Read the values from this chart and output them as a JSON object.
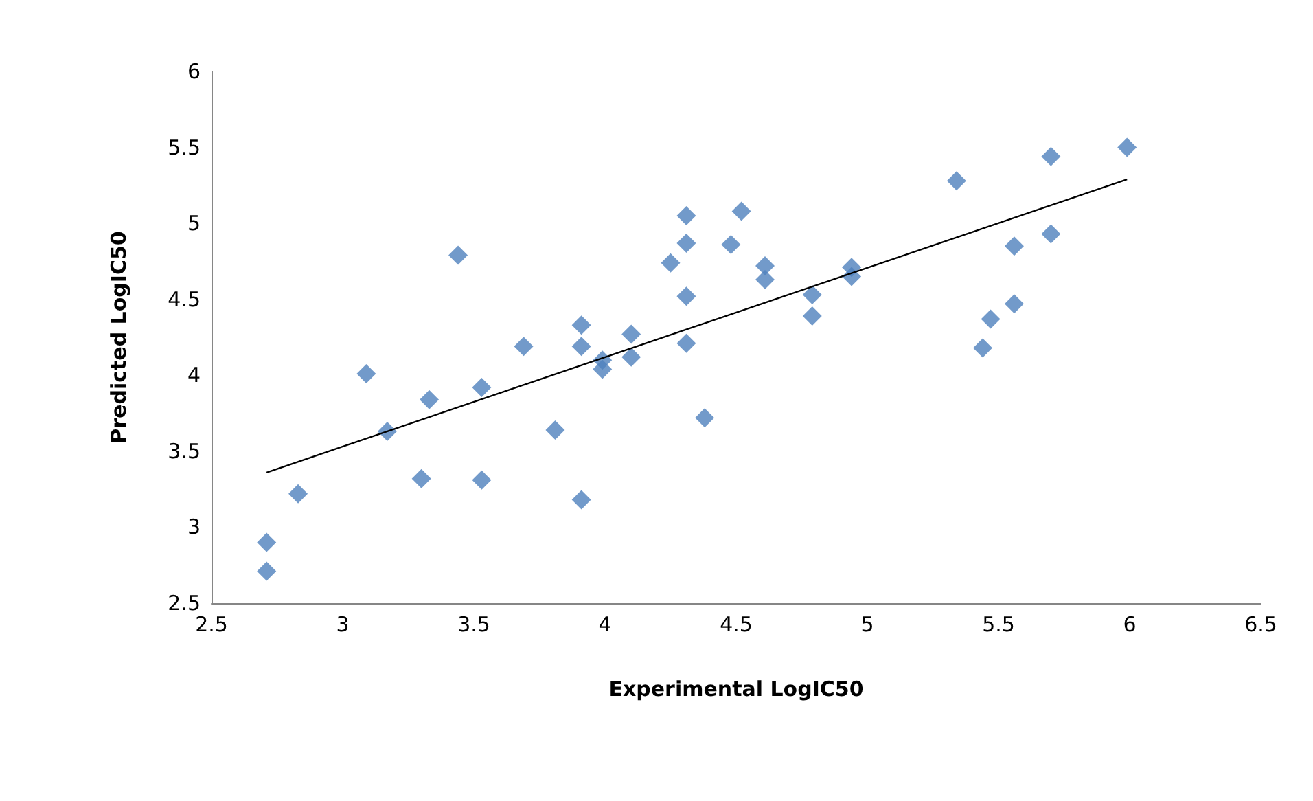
{
  "chart_data": {
    "type": "scatter",
    "xlabel": "Experimental LogIC50",
    "ylabel": "Predicted LogIC50",
    "xlim": [
      2.5,
      6.5
    ],
    "xticks": [
      2.5,
      3,
      3.5,
      4,
      4.5,
      5,
      5.5,
      6,
      6.5
    ],
    "ylim": [
      2.5,
      6
    ],
    "yticks": [
      2.5,
      3,
      3.5,
      4,
      4.5,
      5,
      5.5,
      6
    ],
    "grid": false,
    "marker": "diamond",
    "series": [
      {
        "color": "#4f81bd",
        "x": [
          3.44,
          4.31,
          4.52,
          4.31,
          4.48,
          4.25,
          4.31,
          3.91,
          3.69,
          3.91,
          4.1,
          3.99,
          3.99,
          4.1,
          4.31,
          3.09,
          3.33,
          3.53,
          3.17,
          3.81,
          4.38,
          3.3,
          3.53,
          3.91,
          2.83,
          2.71,
          2.71,
          4.61,
          4.61,
          4.79,
          4.79,
          4.94,
          4.94,
          5.34,
          5.7,
          5.99,
          5.56,
          5.7,
          5.56,
          5.47,
          5.44
        ],
        "values": [
          4.79,
          5.05,
          5.08,
          4.87,
          4.86,
          4.74,
          4.52,
          4.33,
          4.19,
          4.19,
          4.27,
          4.1,
          4.04,
          4.12,
          4.21,
          4.01,
          3.84,
          3.92,
          3.63,
          3.64,
          3.72,
          3.32,
          3.31,
          3.18,
          3.22,
          2.9,
          2.71,
          4.72,
          4.63,
          4.53,
          4.39,
          4.71,
          4.65,
          5.28,
          5.44,
          5.5,
          4.85,
          4.93,
          4.47,
          4.37,
          4.18
        ]
      },
      {
        "type": "line",
        "color": "#000000",
        "marker": "none",
        "x": [
          2.71,
          5.99
        ],
        "values": [
          3.36,
          5.29
        ]
      }
    ]
  }
}
